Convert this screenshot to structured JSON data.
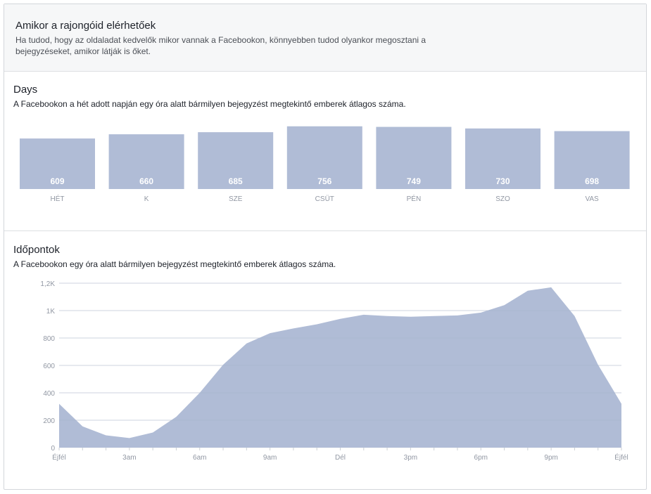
{
  "header": {
    "title": "Amikor a rajongóid elérhetőek",
    "description": "Ha tudod, hogy az oldaladat kedvelők mikor vannak a Facebookon, könnyebben tudod olyankor megosztani a bejegyzéseket, amikor látják is őket."
  },
  "days": {
    "title": "Days",
    "subtitle": "A Facebookon a hét adott napján egy óra alatt bármilyen bejegyzést megtekintő emberek átlagos száma."
  },
  "times": {
    "title": "Időpontok",
    "subtitle": "A Facebookon egy óra alatt bármilyen bejegyzést megtekintő emberek átlagos száma."
  },
  "colors": {
    "fill": "#b0bcd6",
    "label": "#ffffff",
    "axis": "#9197a3"
  },
  "chart_data": [
    {
      "type": "bar",
      "categories": [
        "HÉT",
        "K",
        "SZE",
        "CSÜT",
        "PÉN",
        "SZO",
        "VAS"
      ],
      "values": [
        609,
        660,
        685,
        756,
        749,
        730,
        698
      ],
      "data_labels": true
    },
    {
      "type": "area",
      "x_tick_labels": [
        "Éjfél",
        "3am",
        "6am",
        "9am",
        "Dél",
        "3pm",
        "6pm",
        "9pm",
        "Éjfél"
      ],
      "x_hours": [
        0,
        1,
        2,
        3,
        4,
        5,
        6,
        7,
        8,
        9,
        10,
        11,
        12,
        13,
        14,
        15,
        16,
        17,
        18,
        19,
        20,
        21,
        22,
        23,
        24
      ],
      "values": [
        320,
        155,
        90,
        70,
        110,
        225,
        400,
        605,
        760,
        835,
        870,
        900,
        940,
        970,
        960,
        955,
        960,
        965,
        985,
        1040,
        1145,
        1170,
        960,
        605,
        320
      ],
      "y_tick_labels": [
        "0",
        "200",
        "400",
        "600",
        "800",
        "1K",
        "1,2K"
      ],
      "y_ticks": [
        0,
        200,
        400,
        600,
        800,
        1000,
        1200
      ],
      "ylim": [
        0,
        1200
      ],
      "xlim": [
        0,
        24
      ],
      "grid": true
    }
  ]
}
